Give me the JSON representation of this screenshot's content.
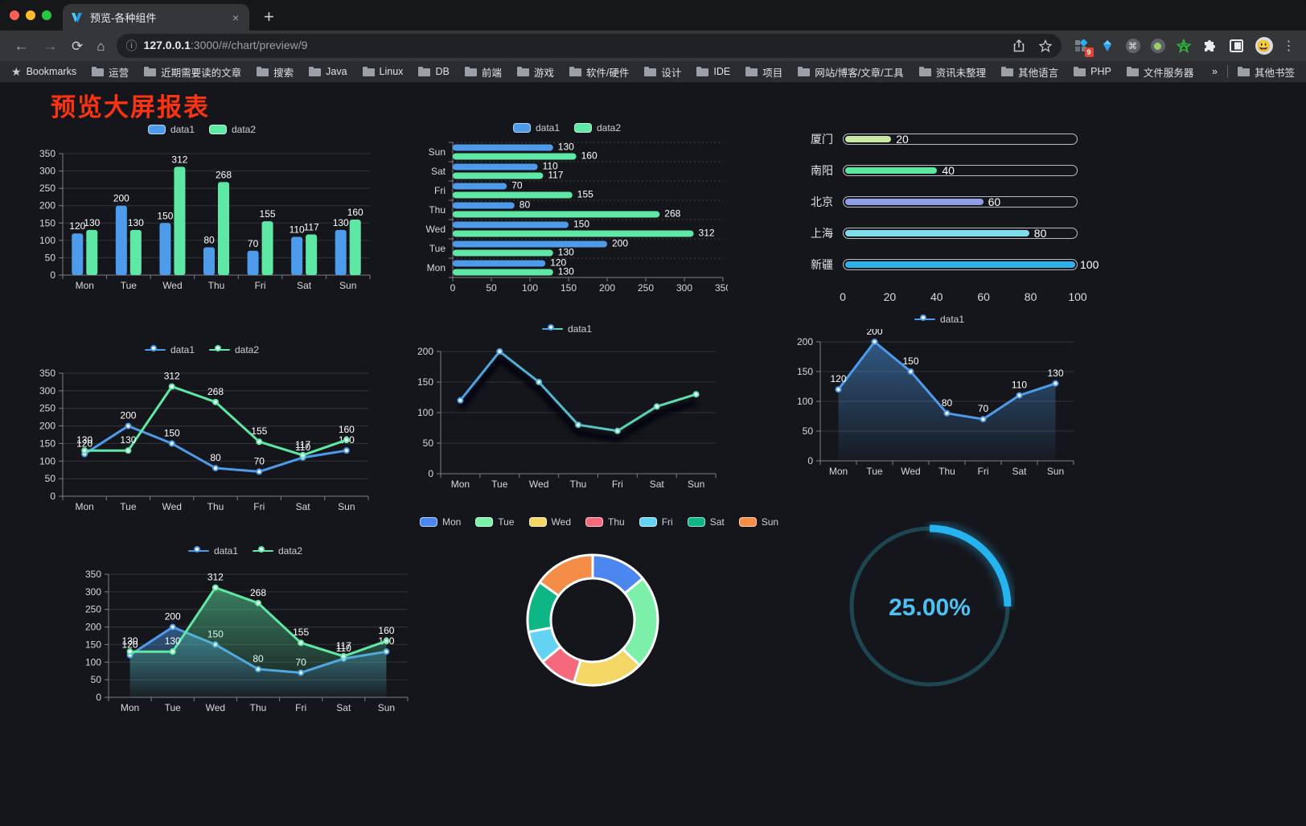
{
  "browser": {
    "tab": {
      "title": "预览-各种组件",
      "close": "×"
    },
    "new_tab": "+",
    "nav": {
      "back": "←",
      "forward": "→",
      "reload": "⟳",
      "home": "⌂",
      "info": "ⓘ"
    },
    "url_host": "127.0.0.1",
    "url_rest": ":3000/#/chart/preview/9",
    "extension_badge": "9",
    "menu_dots": "⋮",
    "bookmarks_bar": {
      "star": "★",
      "label": "Bookmarks",
      "folders": [
        "运营",
        "近期需要读的文章",
        "搜索",
        "Java",
        "Linux",
        "DB",
        "前端",
        "游戏",
        "软件/硬件",
        "设计",
        "IDE",
        "项目",
        "网站/博客/文章/工具",
        "资讯未整理",
        "其他语言",
        "PHP",
        "文件服务器"
      ],
      "overflow": "»",
      "other": "其他书签"
    }
  },
  "page": {
    "title": "预览大屏报表",
    "title_color": "#fa3310"
  },
  "chart_data": [
    {
      "id": "c1",
      "type": "bar",
      "categories": [
        "Mon",
        "Tue",
        "Wed",
        "Thu",
        "Fri",
        "Sat",
        "Sun"
      ],
      "series": [
        {
          "name": "data1",
          "color": "#4d9bea",
          "values": [
            120,
            200,
            150,
            80,
            70,
            110,
            130
          ]
        },
        {
          "name": "data2",
          "color": "#5fe8a5",
          "values": [
            130,
            130,
            312,
            268,
            155,
            117,
            160
          ]
        }
      ],
      "ylim": [
        0,
        350
      ],
      "yticks": [
        0,
        50,
        100,
        150,
        200,
        250,
        300,
        350
      ],
      "grid": true,
      "value_labels": true,
      "legend_position": "top"
    },
    {
      "id": "c2",
      "type": "bar-horizontal",
      "categories": [
        "Mon",
        "Tue",
        "Wed",
        "Thu",
        "Fri",
        "Sat",
        "Sun"
      ],
      "series": [
        {
          "name": "data1",
          "color": "#4d9bea",
          "values": [
            120,
            200,
            150,
            80,
            70,
            110,
            130
          ]
        },
        {
          "name": "data2",
          "color": "#5fe8a5",
          "values": [
            130,
            130,
            312,
            268,
            155,
            117,
            160
          ]
        }
      ],
      "xlim": [
        0,
        350
      ],
      "xticks": [
        0,
        50,
        100,
        150,
        200,
        250,
        300,
        350
      ],
      "grid": true,
      "value_labels": true,
      "legend_position": "top"
    },
    {
      "id": "c3",
      "type": "progress-bars",
      "max": 100,
      "xticks": [
        0,
        20,
        40,
        60,
        80,
        100
      ],
      "rows": [
        {
          "label": "厦门",
          "value": 20,
          "color": "#c9e7a0"
        },
        {
          "label": "南阳",
          "value": 40,
          "color": "#5be8a0"
        },
        {
          "label": "北京",
          "value": 60,
          "color": "#8f9ce8"
        },
        {
          "label": "上海",
          "value": 80,
          "color": "#7fdce8"
        },
        {
          "label": "新疆",
          "value": 100,
          "color": "#2fb2ea"
        }
      ]
    },
    {
      "id": "c4",
      "type": "line",
      "categories": [
        "Mon",
        "Tue",
        "Wed",
        "Thu",
        "Fri",
        "Sat",
        "Sun"
      ],
      "series": [
        {
          "name": "data1",
          "color": "#4d9bea",
          "values": [
            120,
            200,
            150,
            80,
            70,
            110,
            130
          ]
        },
        {
          "name": "data2",
          "color": "#5fe8a5",
          "values": [
            130,
            130,
            312,
            268,
            155,
            117,
            160
          ]
        }
      ],
      "ylim": [
        0,
        350
      ],
      "yticks": [
        0,
        50,
        100,
        150,
        200,
        250,
        300,
        350
      ],
      "grid": true,
      "value_labels": true,
      "legend_position": "top"
    },
    {
      "id": "c5",
      "type": "line",
      "categories": [
        "Mon",
        "Tue",
        "Wed",
        "Thu",
        "Fri",
        "Sat",
        "Sun"
      ],
      "series": [
        {
          "name": "data1",
          "color": "#4898ea",
          "color2": "#5fe8a5",
          "gradient": true,
          "shadow": true,
          "values": [
            120,
            200,
            150,
            80,
            70,
            110,
            130
          ]
        }
      ],
      "ylim": [
        0,
        200
      ],
      "yticks": [
        0,
        50,
        100,
        150,
        200
      ],
      "grid": true,
      "value_labels": false,
      "legend_position": "top"
    },
    {
      "id": "c6",
      "type": "area",
      "categories": [
        "Mon",
        "Tue",
        "Wed",
        "Thu",
        "Fri",
        "Sat",
        "Sun"
      ],
      "series": [
        {
          "name": "data1",
          "color": "#4d9bea",
          "area": true,
          "values": [
            120,
            200,
            150,
            80,
            70,
            110,
            130
          ]
        }
      ],
      "ylim": [
        0,
        200
      ],
      "yticks": [
        0,
        50,
        100,
        150,
        200
      ],
      "grid": true,
      "value_labels": true,
      "legend_position": "top"
    },
    {
      "id": "c7",
      "type": "area",
      "categories": [
        "Mon",
        "Tue",
        "Wed",
        "Thu",
        "Fri",
        "Sat",
        "Sun"
      ],
      "series": [
        {
          "name": "data1",
          "color": "#4d9bea",
          "area": true,
          "values": [
            120,
            200,
            150,
            80,
            70,
            110,
            130
          ]
        },
        {
          "name": "data2",
          "color": "#5fe8a5",
          "area": true,
          "values": [
            130,
            130,
            312,
            268,
            155,
            117,
            160
          ]
        }
      ],
      "ylim": [
        0,
        350
      ],
      "yticks": [
        0,
        50,
        100,
        150,
        200,
        250,
        300,
        350
      ],
      "grid": true,
      "value_labels": true,
      "legend_position": "top"
    },
    {
      "id": "c8",
      "type": "pie",
      "labels": [
        "Mon",
        "Tue",
        "Wed",
        "Thu",
        "Fri",
        "Sat",
        "Sun"
      ],
      "values": [
        120,
        200,
        150,
        80,
        70,
        110,
        130
      ],
      "colors": [
        "#4c86ef",
        "#7cf0a8",
        "#f3d664",
        "#f4697c",
        "#64d2f2",
        "#0eb585",
        "#f48d47"
      ],
      "donut": true,
      "legend_position": "top"
    },
    {
      "id": "c9",
      "type": "gauge",
      "value": 25,
      "label": "25.00%",
      "track_color": "#1c4650",
      "arc_color": "#25b4f0",
      "text_color": "#4cc1f5"
    }
  ]
}
